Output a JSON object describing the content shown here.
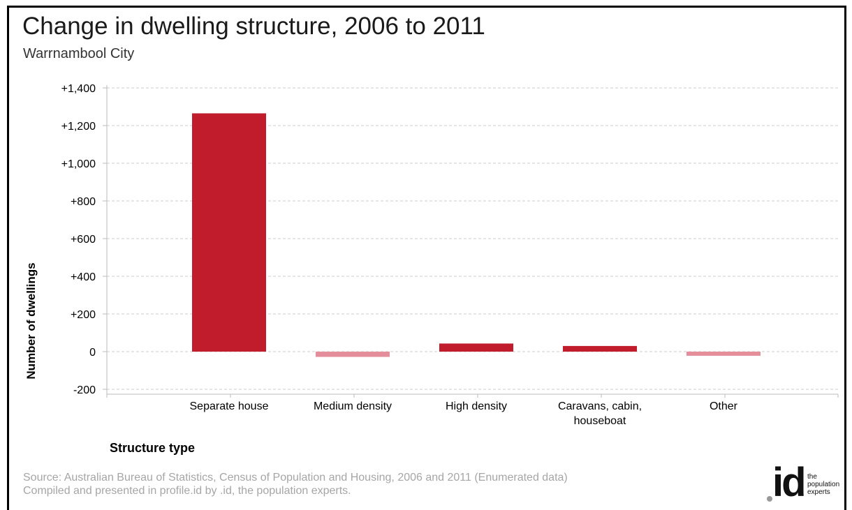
{
  "header": {
    "title": "Change in dwelling structure, 2006 to 2011",
    "subtitle": "Warrnambool City"
  },
  "footer": {
    "source_line1": "Source: Australian Bureau of Statistics, Census of Population and Housing, 2006 and 2011 (Enumerated data)",
    "source_line2": "Compiled and presented in profile.id by .id, the population experts."
  },
  "logo": {
    "mark": "id",
    "tagline": [
      "the",
      "population",
      "experts"
    ]
  },
  "colors": {
    "positive": "#c01c2c",
    "negative": "#e58e9b",
    "grid": "#cccccc",
    "axis": "#bbbbbb"
  },
  "chart_data": {
    "type": "bar",
    "title": "Change in dwelling structure, 2006 to 2011",
    "subtitle": "Warrnambool City",
    "xlabel": "Structure type",
    "ylabel": "Number of dwellings",
    "ylim": [
      -200,
      1400
    ],
    "yticks": [
      -200,
      0,
      200,
      400,
      600,
      800,
      1000,
      1200,
      1400
    ],
    "ytick_labels": [
      "-200",
      "0",
      "+200",
      "+400",
      "+600",
      "+800",
      "+1,000",
      "+1,200",
      "+1,400"
    ],
    "categories": [
      [
        "Separate house"
      ],
      [
        "Medium density"
      ],
      [
        "High density"
      ],
      [
        "Caravans, cabin,",
        "houseboat"
      ],
      [
        "Other"
      ]
    ],
    "values": [
      1265,
      -28,
      43,
      30,
      -22
    ],
    "grid": true,
    "legend": "none"
  }
}
